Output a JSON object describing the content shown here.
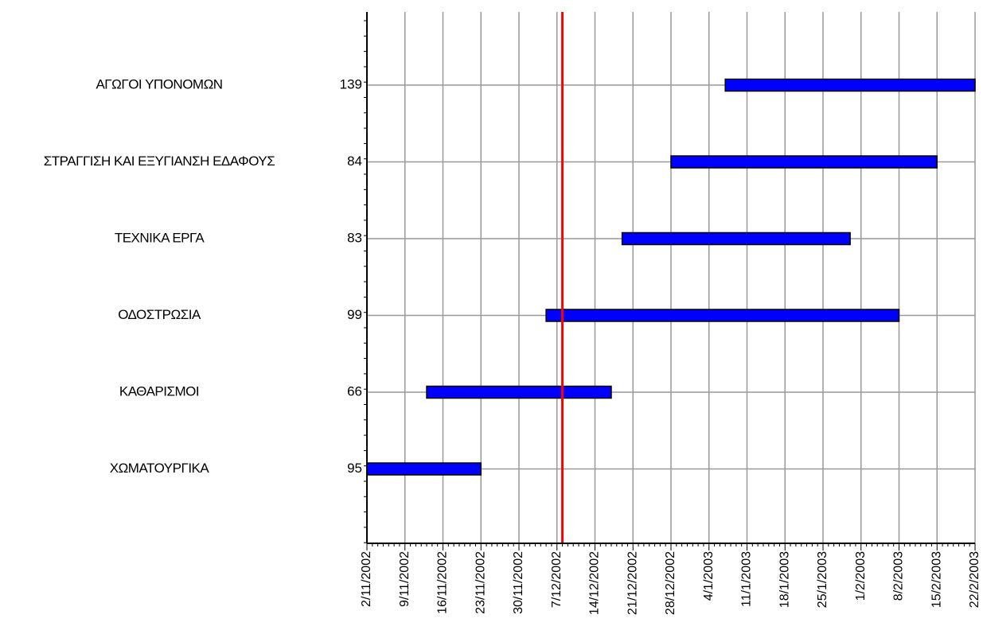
{
  "chart_data": {
    "type": "gantt",
    "title": "",
    "xlabel": "",
    "ylabel": "",
    "x_ticks": [
      "2/11/2002",
      "9/11/2002",
      "16/11/2002",
      "23/11/2002",
      "30/11/2002",
      "7/12/2002",
      "14/12/2002",
      "21/12/2002",
      "28/12/2002",
      "4/1/2003",
      "11/1/2003",
      "18/1/2003",
      "25/1/2003",
      "1/2/2003",
      "8/2/2003",
      "15/2/2003",
      "22/2/2003"
    ],
    "xlim": [
      "2002-11-02",
      "2003-02-22"
    ],
    "grid": true,
    "today_marker": {
      "date": "2002-12-08",
      "color": "#ff0000"
    },
    "tasks": [
      {
        "name": "ΑΓΩΓΟΙ ΥΠΟΝΟΜΩΝ",
        "id": "139",
        "start": "2003-01-07",
        "end": "2003-02-22"
      },
      {
        "name": "ΣΤΡΑΓΓΙΣΗ ΚΑΙ ΕΞΥΓΙΑΝΣΗ ΕΔΑΦΟΥΣ",
        "id": "84",
        "start": "2002-12-28",
        "end": "2003-02-15"
      },
      {
        "name": "ΤΕΧΝΙΚΑ ΕΡΓΑ",
        "id": "83",
        "start": "2002-12-19",
        "end": "2003-01-30"
      },
      {
        "name": "ΟΔΟΣΤΡΩΣΙΑ",
        "id": "99",
        "start": "2002-12-05",
        "end": "2003-02-08"
      },
      {
        "name": "ΚΑΘΑΡΙΣΜΟΙ",
        "id": "66",
        "start": "2002-11-13",
        "end": "2002-12-17"
      },
      {
        "name": "ΧΩΜΑΤΟΥΡΓΙΚΑ",
        "id": "95",
        "start": "2002-11-02",
        "end": "2002-11-23"
      }
    ],
    "bar_color": "#0000ff",
    "grid_color": "#999999"
  }
}
